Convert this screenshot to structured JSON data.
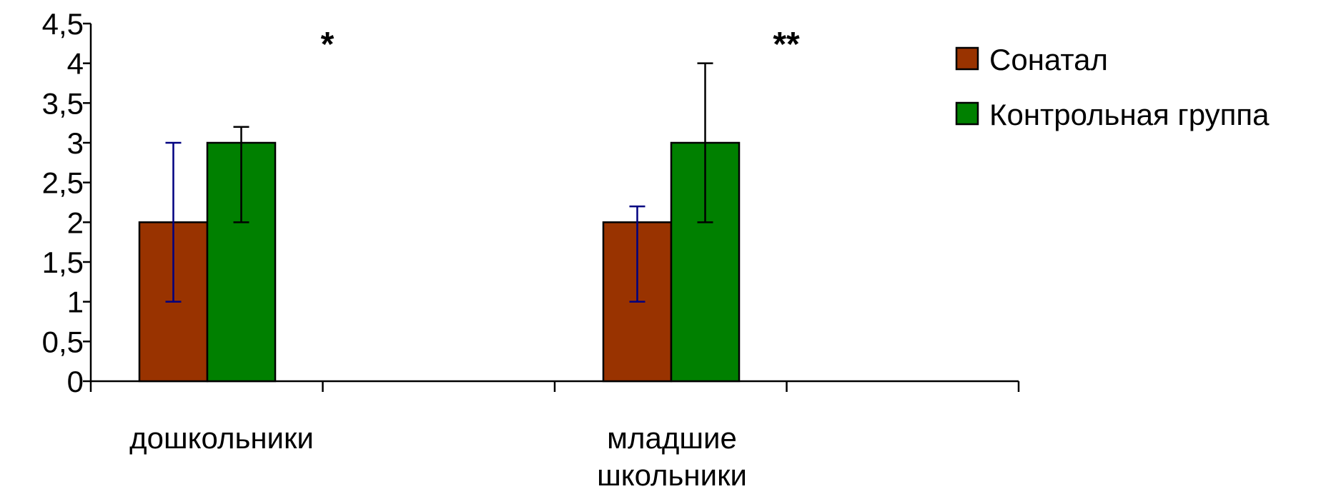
{
  "chart_data": {
    "type": "bar",
    "categories": [
      [
        "дошкольники"
      ],
      [
        "младшие",
        "школьники"
      ]
    ],
    "y_tick_labels": [
      "0",
      "0,5",
      "1",
      "1,5",
      "2",
      "2,5",
      "3",
      "3,5",
      "4",
      "4,5"
    ],
    "ylim": [
      0,
      4.5
    ],
    "grid": false,
    "legend_position": "right",
    "series": [
      {
        "name": "Сонатал",
        "color": "#993300",
        "values": [
          2,
          2
        ],
        "error_low": [
          1,
          1
        ],
        "error_high": [
          3,
          2.2
        ],
        "error_color": "#000080"
      },
      {
        "name": "Контрольная группа",
        "color": "#008000",
        "values": [
          3,
          3
        ],
        "error_low": [
          2,
          2
        ],
        "error_high": [
          3.2,
          4
        ],
        "error_color": "#000000"
      }
    ],
    "annotations": [
      "*",
      "**"
    ]
  }
}
